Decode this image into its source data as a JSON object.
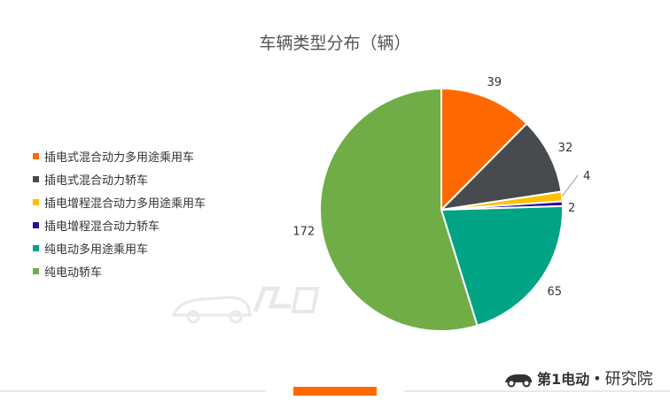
{
  "chart_data": {
    "type": "pie",
    "title": "车辆类型分布（辆）",
    "categories": [
      "插电式混合动力多用途乘用车",
      "插电式混合动力轿车",
      "插电增程混合动力多用途乘用车",
      "插电增程混合动力轿车",
      "纯电动多用途乘用车",
      "纯电动轿车"
    ],
    "values": [
      39,
      32,
      4,
      2,
      65,
      172
    ],
    "colors": [
      "#ff6a00",
      "#474b4e",
      "#ffc000",
      "#2a0ca0",
      "#00a384",
      "#70ad47"
    ],
    "legend_position": "left"
  },
  "brand": {
    "logo_text": "第1电动",
    "suffix": "研究院",
    "dot": "•"
  }
}
